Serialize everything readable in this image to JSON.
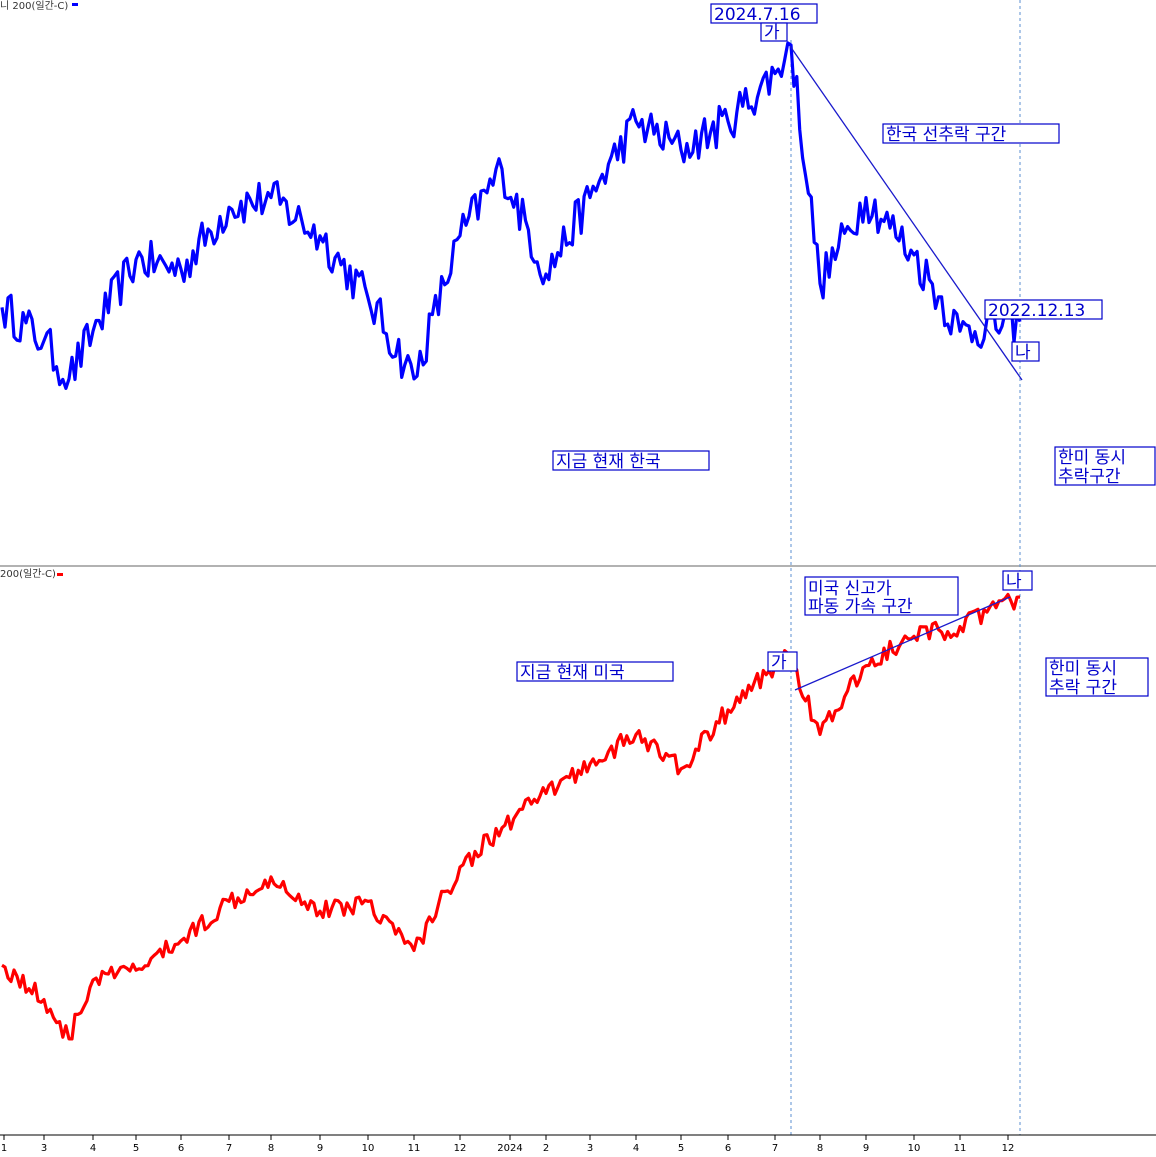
{
  "colors": {
    "top_series": "#0000ff",
    "bottom_series": "#ff0000",
    "annotation": "#0000cc",
    "annotation_line": "#1a1acc",
    "divider": "#999999",
    "vline": "#5b8fd0"
  },
  "panels": {
    "top_label": "니 200(일간-C)",
    "bottom_label": "200(일간-C)"
  },
  "annotations": {
    "top_date_peak": "2024.7.16",
    "top_ga": "가",
    "top_section": "한국 선추락 구간",
    "top_date_end": "2022.12.13",
    "top_na": "나",
    "top_now": "지금 현재 한국",
    "top_side_line1": "한미 동시",
    "top_side_line2": "추락구간",
    "bottom_section_line1": "미국 신고가",
    "bottom_section_line2": "파동 가속 구간",
    "bottom_na": "나",
    "bottom_ga": "가",
    "bottom_now": "지금 현재 미국",
    "bottom_side_line1": "한미 동시",
    "bottom_side_line2": "추락 구간"
  },
  "chart_data": [
    {
      "type": "line",
      "panel": "top",
      "series": [
        {
          "color": "#0000ff",
          "x": [
            "2023-01",
            "2023-02",
            "2023-03",
            "2023-04",
            "2023-05",
            "2023-06",
            "2023-07",
            "2023-08",
            "2023-09",
            "2023-10",
            "2023-11",
            "2023-12",
            "2024-01",
            "2024-02",
            "2024-03",
            "2024-04",
            "2024-05",
            "2024-06",
            "2024-07",
            "2024-07-16",
            "2024-08",
            "2024-09",
            "2024-10",
            "2024-11",
            "2024-12"
          ],
          "values": [
            45,
            38,
            30,
            40,
            55,
            53,
            66,
            68,
            60,
            47,
            30,
            60,
            74,
            52,
            68,
            84,
            78,
            84,
            94,
            100,
            50,
            68,
            56,
            40,
            42
          ]
        }
      ]
    },
    {
      "type": "line",
      "panel": "bottom",
      "series": [
        {
          "color": "#ff0000",
          "x": [
            "2023-01",
            "2023-02",
            "2023-03",
            "2023-04",
            "2023-05",
            "2023-06",
            "2023-07",
            "2023-08",
            "2023-09",
            "2023-10",
            "2023-11",
            "2023-12",
            "2024-01",
            "2024-02",
            "2024-03",
            "2024-04",
            "2024-05",
            "2024-06",
            "2024-07",
            "2024-07-16",
            "2024-08",
            "2024-09",
            "2024-10",
            "2024-11",
            "2024-12"
          ],
          "values": [
            25,
            18,
            10,
            22,
            24,
            30,
            38,
            43,
            36,
            38,
            28,
            45,
            53,
            60,
            66,
            72,
            65,
            77,
            86,
            88,
            72,
            86,
            92,
            94,
            100
          ]
        }
      ]
    }
  ],
  "x_axis": {
    "ticks": [
      "1",
      "3",
      "4",
      "5",
      "6",
      "7",
      "8",
      "9",
      "10",
      "11",
      "12",
      "2024",
      "2",
      "3",
      "4",
      "5",
      "6",
      "7",
      "8",
      "9",
      "10",
      "11",
      "12"
    ]
  }
}
